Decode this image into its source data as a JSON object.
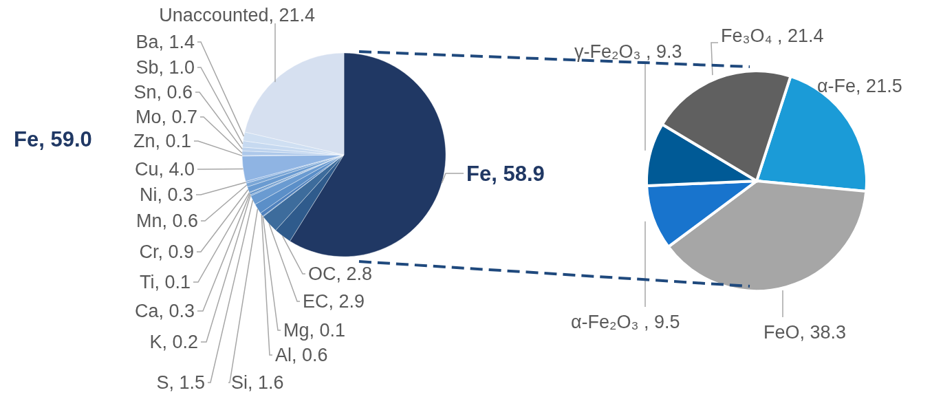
{
  "chart_data": [
    {
      "type": "pie",
      "categories": [
        "Fe, 58.9",
        "OC, 2.8",
        "EC, 2.9",
        "Mg, 0.1",
        "Al, 0.6",
        "Si, 1.6",
        "S, 1.5",
        "K, 0.2",
        "Ca, 0.3",
        "Ti, 0.1",
        "Cr, 0.9",
        "Mn, 0.6",
        "Ni, 0.3",
        "Cu, 4.0",
        "Zn, 0.1",
        "Mo, 0.7",
        "Sn, 0.6",
        "Sb, 1.0",
        "Ba, 1.4",
        "Unaccounted, 21.4"
      ],
      "values": [
        58.9,
        2.8,
        2.9,
        0.1,
        0.6,
        1.6,
        1.5,
        0.2,
        0.3,
        0.1,
        0.9,
        0.6,
        0.3,
        4.0,
        0.1,
        0.7,
        0.6,
        1.0,
        1.4,
        21.4
      ],
      "colors": [
        "#203864",
        "#2f5b8c",
        "#3d6c9c",
        "#4a7fb8",
        "#4f81bd",
        "#5b8fc8",
        "#6a9bd1",
        "#7aa6d6",
        "#5b8fc8",
        "#4a7fb8",
        "#6a9bd1",
        "#7aa6d6",
        "#8db3e2",
        "#8fb4e3",
        "#9dbde6",
        "#adc8ea",
        "#bdd3ee",
        "#c6d9f0",
        "#cfdff2",
        "#d6e0f0"
      ],
      "annotations": [
        "Fe, 59.0"
      ]
    },
    {
      "type": "pie",
      "categories": [
        "α-Fe, 21.5",
        "FeO, 38.3",
        "α-Fe₂O₃ , 9.5",
        "γ-Fe₂O₃ , 9.3",
        "Fe₃O₄ , 21.4"
      ],
      "values": [
        21.5,
        38.3,
        9.5,
        9.3,
        21.4
      ],
      "colors": [
        "#1b9bd7",
        "#a6a6a6",
        "#1874cd",
        "#005a96",
        "#606060"
      ]
    }
  ]
}
